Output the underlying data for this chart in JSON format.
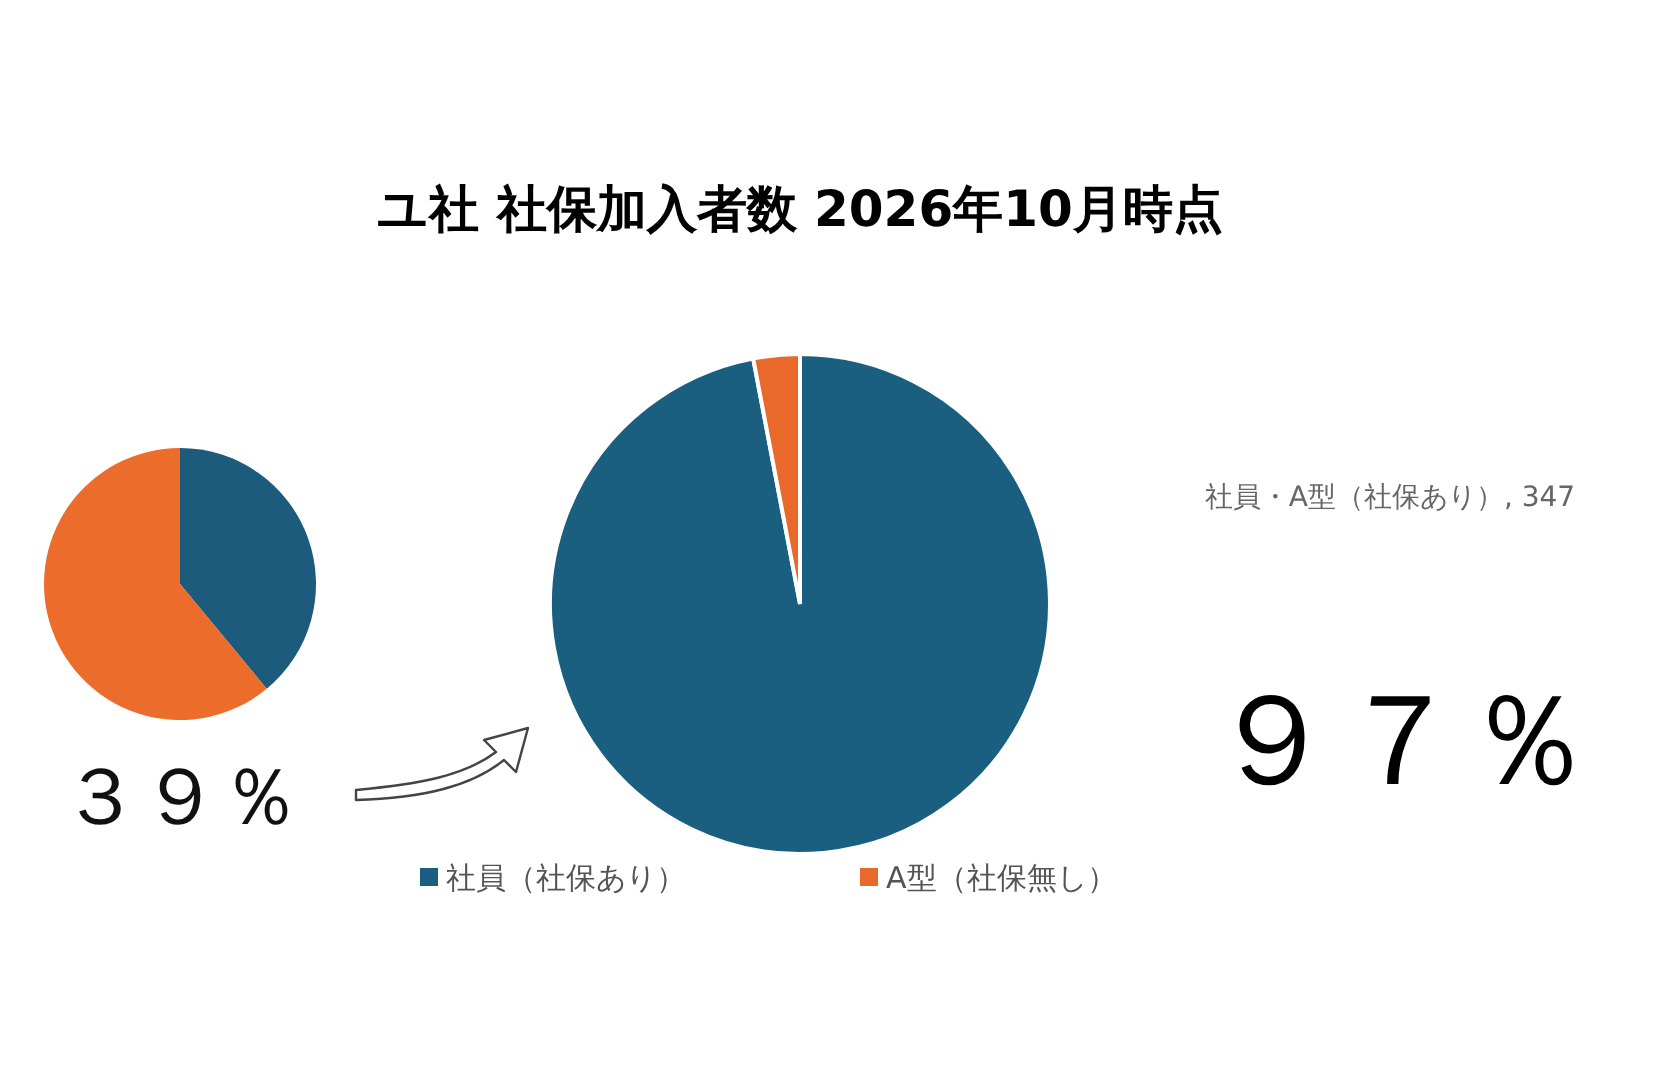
{
  "chart_data": [
    {
      "type": "pie",
      "categories": [
        null,
        null
      ],
      "values": [
        39,
        61
      ],
      "colors": [
        "#1d5b7d",
        "#ec6d2b"
      ],
      "annotations": [
        "３９％"
      ]
    },
    {
      "type": "pie",
      "title": "ユ社 社保加入者数 2026年10月時点",
      "categories": [
        "社員（社保あり）",
        "A型（社保無し）"
      ],
      "values": [
        97,
        3
      ],
      "colors": [
        "#1a5e80",
        "#e8692a"
      ],
      "legend": "bottom",
      "annotations": [
        "社員・A型（社保あり）, 347",
        "９７％"
      ]
    }
  ]
}
